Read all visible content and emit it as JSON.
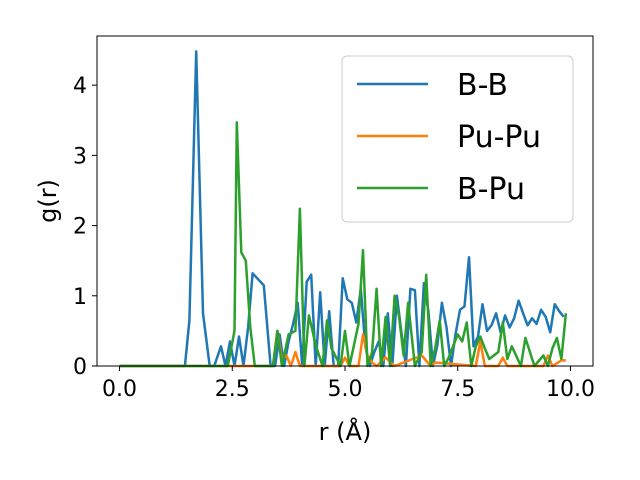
{
  "chart_data": {
    "type": "line",
    "xlabel": "r (Å)",
    "ylabel": "g(r)",
    "xlim": [
      -0.5,
      10.5
    ],
    "ylim": [
      0,
      4.7
    ],
    "xticks": [
      0.0,
      2.5,
      5.0,
      7.5,
      10.0
    ],
    "xtick_labels": [
      "0.0",
      "2.5",
      "5.0",
      "7.5",
      "10.0"
    ],
    "yticks": [
      0,
      1,
      2,
      3,
      4
    ],
    "ytick_labels": [
      "0",
      "1",
      "2",
      "3",
      "4"
    ],
    "grid": false,
    "legend_position": "top-right",
    "series": [
      {
        "name": "B-B",
        "color": "#1f77b4",
        "x": [
          0,
          1.0,
          1.45,
          1.55,
          1.7,
          1.85,
          2.0,
          2.1,
          2.25,
          2.35,
          2.45,
          2.55,
          2.65,
          2.75,
          2.85,
          2.95,
          3.05,
          3.2,
          3.35,
          3.45,
          3.55,
          3.65,
          3.75,
          3.85,
          3.95,
          4.05,
          4.15,
          4.25,
          4.35,
          4.45,
          4.55,
          4.65,
          4.75,
          4.85,
          4.95,
          5.05,
          5.15,
          5.25,
          5.35,
          5.45,
          5.55,
          5.65,
          5.75,
          5.85,
          5.95,
          6.05,
          6.15,
          6.25,
          6.35,
          6.45,
          6.55,
          6.65,
          6.75,
          6.85,
          6.95,
          7.05,
          7.15,
          7.25,
          7.35,
          7.45,
          7.55,
          7.65,
          7.75,
          7.85,
          7.95,
          8.05,
          8.15,
          8.25,
          8.35,
          8.45,
          8.55,
          8.65,
          8.75,
          8.85,
          8.95,
          9.05,
          9.15,
          9.25,
          9.35,
          9.45,
          9.55,
          9.65,
          9.75,
          9.85
        ],
        "y": [
          0,
          0,
          0,
          0.65,
          4.48,
          0.75,
          0,
          0,
          0.28,
          0,
          0.35,
          0,
          0.42,
          0,
          0.55,
          1.32,
          1.25,
          1.15,
          0,
          0,
          0.45,
          0,
          0.35,
          0.6,
          0.9,
          0,
          1.2,
          1.3,
          0,
          1.05,
          0,
          0.78,
          0,
          0,
          1.25,
          0.95,
          0.9,
          0.62,
          1.1,
          0.28,
          0,
          0.2,
          0.35,
          0,
          0.75,
          0,
          1.0,
          0.48,
          0,
          1.1,
          1.08,
          0,
          1.18,
          0.78,
          0,
          0.3,
          0.9,
          0.55,
          0,
          0.45,
          0.8,
          0.85,
          1.55,
          0.28,
          0.42,
          0.88,
          0.5,
          0.58,
          0.75,
          0.48,
          0.72,
          0.55,
          0.68,
          0.93,
          0.75,
          0.58,
          0.68,
          0.6,
          0.8,
          0.7,
          0.48,
          0.88,
          0.78,
          0.7
        ],
        "note_x_end": 9.9
      },
      {
        "name": "Pu-Pu",
        "color": "#ff7f0e",
        "x": [
          0,
          3.4,
          3.5,
          3.6,
          3.7,
          3.8,
          3.9,
          4.0,
          4.1,
          4.9,
          5.0,
          5.1,
          5.3,
          5.4,
          5.5,
          5.6,
          5.7,
          5.9,
          6.1,
          6.3,
          6.7,
          6.9,
          7.0,
          7.9,
          8.0,
          8.1,
          8.4,
          8.5,
          8.6,
          9.4,
          9.5,
          9.6,
          9.8,
          9.9
        ],
        "y": [
          0,
          0,
          0.5,
          0.1,
          0.15,
          0,
          0.2,
          0,
          0,
          0,
          0.12,
          0,
          0,
          0.45,
          0.15,
          0.05,
          0,
          0.12,
          0,
          0.05,
          0.15,
          0,
          0.05,
          0,
          0.35,
          0,
          0,
          0.12,
          0,
          0,
          0.15,
          0,
          0.08,
          0.08
        ]
      },
      {
        "name": "B-Pu",
        "color": "#2ca02c",
        "x": [
          0,
          2.4,
          2.55,
          2.6,
          2.7,
          2.8,
          2.9,
          3.0,
          3.4,
          3.5,
          3.6,
          3.75,
          3.9,
          4.0,
          4.1,
          4.2,
          4.35,
          4.5,
          4.6,
          4.7,
          4.9,
          5.0,
          5.1,
          5.3,
          5.4,
          5.5,
          5.6,
          5.7,
          5.8,
          5.9,
          6.0,
          6.1,
          6.2,
          6.3,
          6.4,
          6.55,
          6.7,
          6.8,
          6.9,
          7.0,
          7.1,
          7.2,
          7.3,
          7.5,
          7.6,
          7.7,
          7.8,
          7.9,
          8.0,
          8.1,
          8.2,
          8.4,
          8.5,
          8.6,
          8.7,
          8.9,
          9.0,
          9.2,
          9.4,
          9.5,
          9.6,
          9.7,
          9.8,
          9.9
        ],
        "y": [
          0,
          0,
          0.5,
          3.47,
          1.62,
          1.5,
          0.55,
          0,
          0,
          0.5,
          0,
          0.45,
          0.5,
          2.24,
          0,
          0.72,
          0.3,
          0,
          0.65,
          0.25,
          0,
          0.5,
          0,
          0.6,
          1.65,
          0,
          0.2,
          1.1,
          0,
          0.7,
          0,
          1.0,
          0.7,
          0.15,
          0.9,
          0,
          0.2,
          1.3,
          0,
          0.25,
          0.65,
          0,
          0.12,
          0.45,
          0.35,
          0.62,
          0,
          0.28,
          0.42,
          0.25,
          0.1,
          0.2,
          0.62,
          0.1,
          0.28,
          0,
          0.4,
          0,
          0.15,
          0,
          0.25,
          0.4,
          0.1,
          0.75
        ]
      }
    ]
  }
}
